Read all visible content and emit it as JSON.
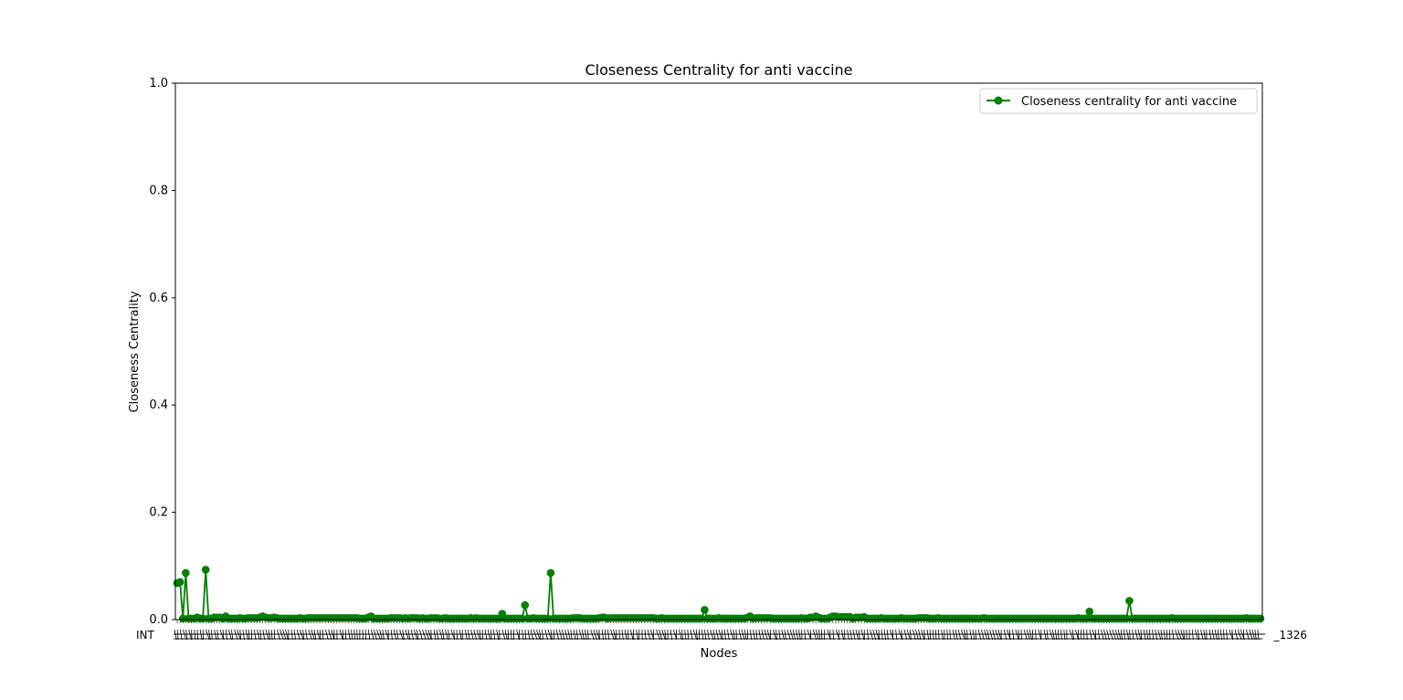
{
  "chart_data": {
    "type": "line",
    "title": "Closeness Centrality for anti vaccine",
    "xlabel": "Nodes",
    "ylabel": "Closeness Centrality",
    "ylim": [
      0,
      1
    ],
    "yticks": [
      "0.0",
      "0.2",
      "0.4",
      "0.6",
      "0.8",
      "1.0"
    ],
    "ytick_values": [
      0,
      0.2,
      0.4,
      0.6,
      0.8,
      1.0
    ],
    "x_tick_first": "INT",
    "x_tick_last": "_1326",
    "legend": {
      "label": "Closeness centrality for anti vaccine",
      "position": "top-right"
    },
    "color": "#008000",
    "series": [
      {
        "name": "Closeness centrality for anti vaccine",
        "values": [
          0.068,
          0.07,
          0.002,
          0.087,
          0.002,
          0.002,
          0.002,
          0.004,
          0.002,
          0.002,
          0.093,
          0.002,
          0.002,
          0.004,
          0.004,
          0.004,
          0.002,
          0.006,
          0.002,
          0.002,
          0.002,
          0.002,
          0.003,
          0.002,
          0.002,
          0.003,
          0.003,
          0.003,
          0.003,
          0.004,
          0.006,
          0.004,
          0.003,
          0.003,
          0.004,
          0.003,
          0.002,
          0.002,
          0.002,
          0.002,
          0.002,
          0.002,
          0.002,
          0.003,
          0.002,
          0.002,
          0.003,
          0.003,
          0.003,
          0.003,
          0.003,
          0.003,
          0.003,
          0.003,
          0.003,
          0.003,
          0.003,
          0.003,
          0.003,
          0.003,
          0.003,
          0.003,
          0.003,
          0.003,
          0.002,
          0.002,
          0.002,
          0.004,
          0.006,
          0.002,
          0.002,
          0.002,
          0.002,
          0.002,
          0.002,
          0.003,
          0.003,
          0.003,
          0.003,
          0.002,
          0.003,
          0.002,
          0.003,
          0.003,
          0.003,
          0.002,
          0.003,
          0.002,
          0.002,
          0.003,
          0.003,
          0.003,
          0.002,
          0.002,
          0.003,
          0.002,
          0.002,
          0.002,
          0.002,
          0.002,
          0.002,
          0.002,
          0.002,
          0.003,
          0.002,
          0.003,
          0.002,
          0.002,
          0.002,
          0.002,
          0.002,
          0.002,
          0.002,
          0.002,
          0.011,
          0.002,
          0.002,
          0.002,
          0.002,
          0.002,
          0.002,
          0.002,
          0.027,
          0.002,
          0.002,
          0.003,
          0.002,
          0.002,
          0.002,
          0.002,
          0.002,
          0.087,
          0.002,
          0.002,
          0.002,
          0.002,
          0.002,
          0.002,
          0.002,
          0.003,
          0.003,
          0.003,
          0.002,
          0.002,
          0.002,
          0.002,
          0.002,
          0.002,
          0.003,
          0.004,
          0.004,
          0.002,
          0.003,
          0.003,
          0.003,
          0.003,
          0.003,
          0.003,
          0.003,
          0.003,
          0.003,
          0.003,
          0.003,
          0.003,
          0.003,
          0.003,
          0.003,
          0.003,
          0.002,
          0.002,
          0.003,
          0.002,
          0.002,
          0.002,
          0.002,
          0.002,
          0.002,
          0.002,
          0.002,
          0.002,
          0.002,
          0.002,
          0.002,
          0.002,
          0.002,
          0.018,
          0.002,
          0.002,
          0.002,
          0.002,
          0.003,
          0.002,
          0.002,
          0.002,
          0.002,
          0.002,
          0.002,
          0.002,
          0.002,
          0.002,
          0.004,
          0.006,
          0.002,
          0.003,
          0.003,
          0.003,
          0.003,
          0.003,
          0.003,
          0.002,
          0.002,
          0.002,
          0.002,
          0.002,
          0.002,
          0.002,
          0.002,
          0.002,
          0.002,
          0.003,
          0.002,
          0.002,
          0.004,
          0.004,
          0.006,
          0.004,
          0.002,
          0.002,
          0.002,
          0.004,
          0.006,
          0.006,
          0.005,
          0.005,
          0.005,
          0.005,
          0.005,
          0.002,
          0.004,
          0.004,
          0.004,
          0.005,
          0.002,
          0.002,
          0.002,
          0.002,
          0.002,
          0.003,
          0.002,
          0.002,
          0.002,
          0.002,
          0.002,
          0.002,
          0.003,
          0.002,
          0.002,
          0.002,
          0.002,
          0.002,
          0.003,
          0.003,
          0.003,
          0.003,
          0.002,
          0.002,
          0.002,
          0.003,
          0.002,
          0.002,
          0.002,
          0.002,
          0.002,
          0.002,
          0.002,
          0.002,
          0.002,
          0.002,
          0.002,
          0.002,
          0.002,
          0.002,
          0.002,
          0.003,
          0.002,
          0.002,
          0.002,
          0.002,
          0.002,
          0.002,
          0.002,
          0.002,
          0.002,
          0.002,
          0.002,
          0.002,
          0.002,
          0.002,
          0.002,
          0.002,
          0.002,
          0.002,
          0.002,
          0.002,
          0.002,
          0.002,
          0.002,
          0.002,
          0.002,
          0.002,
          0.002,
          0.002,
          0.002,
          0.002,
          0.002,
          0.002,
          0.003,
          0.002,
          0.002,
          0.002,
          0.015,
          0.002,
          0.002,
          0.002,
          0.002,
          0.002,
          0.002,
          0.002,
          0.002,
          0.002,
          0.002,
          0.002,
          0.002,
          0.002,
          0.035,
          0.002,
          0.002,
          0.002,
          0.002,
          0.002,
          0.002,
          0.002,
          0.002,
          0.002,
          0.002,
          0.002,
          0.002,
          0.002,
          0.002,
          0.003,
          0.002,
          0.002,
          0.002,
          0.002,
          0.002,
          0.002,
          0.002,
          0.002,
          0.002,
          0.002,
          0.002,
          0.002,
          0.002,
          0.002,
          0.002,
          0.002,
          0.002,
          0.002,
          0.002,
          0.002,
          0.002,
          0.002,
          0.002,
          0.002,
          0.002,
          0.003,
          0.002,
          0.002,
          0.002,
          0.002,
          0.002
        ]
      }
    ]
  }
}
